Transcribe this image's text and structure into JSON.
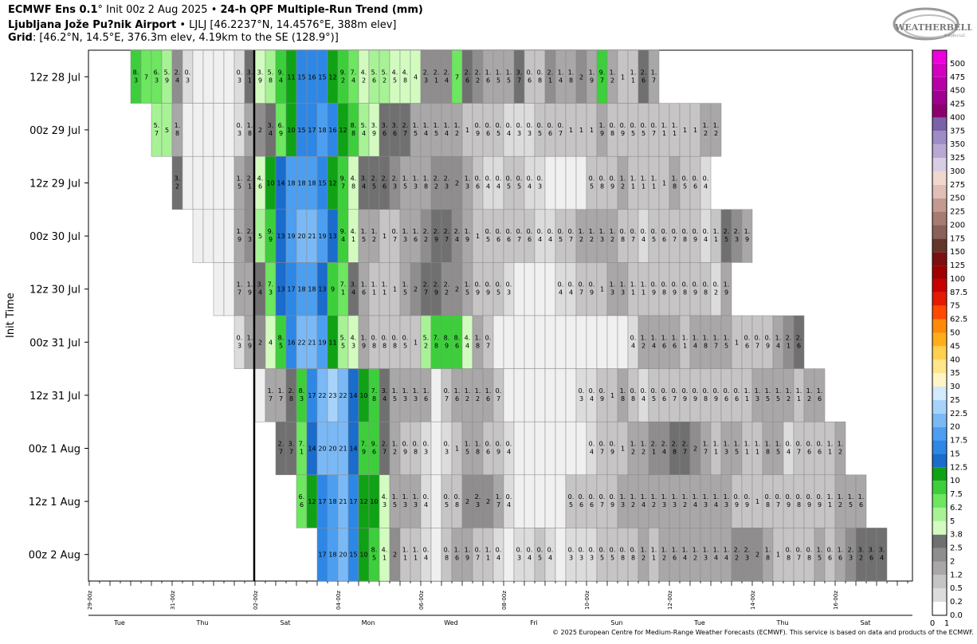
{
  "header": {
    "line1_prefix": "ECMWF Ens 0.1",
    "line1_rest": "° Init 00z 2 Aug 2025 • ",
    "line1_bold": "24-h QPF Multiple-Run Trend (mm)",
    "line2_bold": "Ljubljana Jože Pu?nik Airport",
    "line2_rest": " • LJLJ [46.2237°N, 14.4576°E, 388m elev]",
    "line3_bold": "Grid",
    "line3_rest": ": [46.2°N, 14.5°E, 376.3m elev, 4.19km to the SE (128.9°)]"
  },
  "logo": {
    "text": "WEATHERBELL",
    "sub": "Analytics LLC"
  },
  "credit": "© 2025 European Centre for Medium-Range Weather Forecasts (ECMWF). This service is based on data and products of the ECMWF.",
  "chart_data": {
    "type": "heatmap",
    "ylabel": "Init Time",
    "rows": [
      "12z 28 Jul",
      "00z 29 Jul",
      "12z 29 Jul",
      "00z 30 Jul",
      "12z 30 Jul",
      "00z 31 Jul",
      "12z 31 Jul",
      "00z 1 Aug",
      "12z 1 Aug",
      "00z 2 Aug"
    ],
    "row_start_col": [
      4,
      6,
      8,
      10,
      12,
      14,
      16,
      18,
      20,
      22
    ],
    "x_tick_labels": [
      {
        "col": 0,
        "label": "29-00z"
      },
      {
        "col": 8,
        "label": "31-00z"
      },
      {
        "col": 16,
        "label": "02-00z"
      },
      {
        "col": 24,
        "label": "04-00z"
      },
      {
        "col": 32,
        "label": "06-00z"
      },
      {
        "col": 40,
        "label": "08-00z"
      },
      {
        "col": 48,
        "label": "10-00z"
      },
      {
        "col": 56,
        "label": "12-00z"
      },
      {
        "col": 64,
        "label": "14-00z"
      },
      {
        "col": 72,
        "label": "16-00z"
      }
    ],
    "day_labels": [
      {
        "col": 1,
        "label": "Tue"
      },
      {
        "col": 9,
        "label": "Thu"
      },
      {
        "col": 17,
        "label": "Sat"
      },
      {
        "col": 25,
        "label": "Mon"
      },
      {
        "col": 33,
        "label": "Wed"
      },
      {
        "col": 41,
        "label": "Fri"
      },
      {
        "col": 49,
        "label": "Sun"
      },
      {
        "col": 57,
        "label": "Tue"
      },
      {
        "col": 65,
        "label": "Thu"
      },
      {
        "col": 73,
        "label": "Sat"
      }
    ],
    "analysis_col": 16,
    "values": [
      [
        "8.3",
        "7",
        "6.3",
        "5.9",
        "2.4",
        "0.3",
        "",
        "",
        "",
        "",
        "0.3",
        "3.1",
        "3.9",
        "5.8",
        "9.4",
        "11",
        "15",
        "16",
        "15",
        "12",
        "9.2",
        "7.4",
        "4.2",
        "5.6",
        "5.2",
        "4.5",
        "4.8",
        "4",
        "2.3",
        "2.1",
        "2.4",
        "7",
        "2.6",
        "2.2",
        "1.6",
        "1.5",
        "1.5",
        "3.7",
        "0.6",
        "0.8",
        "2.1",
        "1.4",
        "1.8",
        "2",
        "1.9",
        "9.7",
        "1.2",
        "1",
        "1.1",
        "2.6",
        "1.7"
      ],
      [
        "5.7",
        "5",
        "1.8",
        "",
        "",
        "",
        "",
        "",
        "0.3",
        "1.8",
        "2",
        "3.4",
        "6.9",
        "10",
        "15",
        "17",
        "18",
        "16",
        "12",
        "8.8",
        "5.4",
        "3.9",
        "3.6",
        "3.6",
        "2.7",
        "1.5",
        "1.4",
        "1.5",
        "1.4",
        "1.2",
        "1",
        "0.9",
        "0.6",
        "0.5",
        "0.4",
        "0.3",
        "0.3",
        "0.5",
        "0.6",
        "0.7",
        "1",
        "1",
        "1",
        "1.9",
        "0.8",
        "0.9",
        "0.5",
        "0.5",
        "0.7",
        "1.1",
        "1.1",
        "1",
        "1",
        "1.2",
        "1.2"
      ],
      [
        "3.2",
        "",
        "",
        "",
        "",
        "",
        "1.5",
        "2.1",
        "4.6",
        "10",
        "14",
        "18",
        "18",
        "18",
        "15",
        "12",
        "9.7",
        "4.8",
        "3.4",
        "2.5",
        "2.6",
        "2.3",
        "1.5",
        "1.3",
        "1.8",
        "2.2",
        "2.3",
        "2",
        "1.3",
        "0.6",
        "0.4",
        "0.4",
        "0.5",
        "0.5",
        "0.4",
        "0.3",
        "",
        "",
        "",
        "",
        "0.5",
        "0.8",
        "0.9",
        "1.2",
        "1.1",
        "1.1",
        "1.1",
        "1",
        "1.8",
        "0.5",
        "0.6",
        "0.4"
      ],
      [
        "",
        "",
        "",
        "",
        "1.9",
        "2.3",
        "5",
        "9.9",
        "13",
        "19",
        "20",
        "21",
        "19",
        "13",
        "9.4",
        "4.1",
        "1.5",
        "1.2",
        "1",
        "0.7",
        "1.3",
        "1.6",
        "2.2",
        "2.9",
        "2.7",
        "2.4",
        "1.9",
        "1",
        "0.5",
        "0.6",
        "0.6",
        "0.7",
        "0.6",
        "0.4",
        "0.4",
        "0.5",
        "0.7",
        "1.2",
        "1.2",
        "1.3",
        "1.2",
        "0.8",
        "0.7",
        "0.4",
        "0.5",
        "0.6",
        "0.7",
        "0.8",
        "0.9",
        "0.4",
        "1.1",
        "2.5",
        "2.3",
        "1.9"
      ],
      [
        "",
        "",
        "1.7",
        "1.9",
        "3.4",
        "7.3",
        "13",
        "17",
        "18",
        "18",
        "13",
        "9",
        "7.1",
        "3.4",
        "1.6",
        "1.1",
        "1.1",
        "1",
        "1.5",
        "2",
        "2.7",
        "2.9",
        "2.2",
        "2",
        "1.5",
        "0.9",
        "0.9",
        "0.5",
        "0.3",
        "",
        "",
        "",
        "",
        "0.4",
        "0.4",
        "0.7",
        "0.9",
        "1",
        "1.3",
        "1.3",
        "1.1",
        "1.1",
        "0.9",
        "0.8",
        "0.9",
        "0.8",
        "0.9",
        "0.8",
        "0.2",
        "1.9"
      ],
      [
        "0.3",
        "1.9",
        "2",
        "4",
        "8.5",
        "16",
        "22",
        "21",
        "19",
        "11",
        "5.5",
        "4.3",
        "1.9",
        "0.8",
        "0.8",
        "0.8",
        "0.5",
        "1",
        "5.2",
        "7.8",
        "8.9",
        "8.6",
        "4.4",
        "1.8",
        "0.7",
        "",
        "",
        "",
        "",
        "",
        "",
        "",
        "",
        "",
        "",
        "",
        "",
        "",
        "0.4",
        "1.2",
        "1.4",
        "1.6",
        "1.6",
        "1.1",
        "1.4",
        "1.8",
        "1.7",
        "1.5",
        "1",
        "0.6",
        "0.7",
        "0.9",
        "1.4",
        "2.1",
        "2.6"
      ],
      [
        "",
        "1.7",
        "1.7",
        "2.8",
        "8.3",
        "17",
        "22",
        "23",
        "22",
        "14",
        "10",
        "7.8",
        "3.4",
        "1.5",
        "1.3",
        "1.3",
        "1.6",
        "",
        "0.7",
        "1.6",
        "1.2",
        "1.2",
        "1.6",
        "0.7",
        "",
        "",
        "",
        "",
        "",
        "",
        "",
        "0.3",
        "0.4",
        "0.9",
        "1",
        "1.8",
        "0.8",
        "0.4",
        "0.5",
        "0.6",
        "0.7",
        "0.9",
        "0.9",
        "0.8",
        "0.9",
        "0.6",
        "0.6",
        "1.1",
        "1.3",
        "1.5",
        "1.5",
        "1.2",
        "1.1",
        "1.2",
        "1.6"
      ],
      [
        "2.7",
        "3.7",
        "7.1",
        "14",
        "20",
        "20",
        "21",
        "14",
        "7.9",
        "9.6",
        "2.7",
        "1.2",
        "0.9",
        "0.8",
        "0.3",
        "",
        "0.3",
        "1",
        "1.5",
        "1.8",
        "0.6",
        "0.9",
        "0.4",
        "",
        "",
        "",
        "",
        "",
        "",
        "",
        "0.4",
        "0.7",
        "0.9",
        "1",
        "1.2",
        "1.2",
        "2.1",
        "2.4",
        "2.8",
        "2.7",
        "2",
        "1.7",
        "1.1",
        "1.3",
        "1.5",
        "1.1",
        "1.1",
        "1.8",
        "1.5",
        "0.4",
        "0.7",
        "0.6",
        "0.6",
        "1.1",
        "1.2"
      ],
      [
        "6.6",
        "12",
        "17",
        "18",
        "21",
        "17",
        "12",
        "10",
        "4.3",
        "1.5",
        "1.3",
        "1.3",
        "0.4",
        "",
        "0.5",
        "0.8",
        "2",
        "2.3",
        "2",
        "1.7",
        "0.4",
        "",
        "",
        "",
        "",
        "",
        "0.5",
        "0.6",
        "0.6",
        "0.7",
        "0.9",
        "1.3",
        "1.2",
        "1.4",
        "1.2",
        "1.3",
        "1.3",
        "1.2",
        "1.4",
        "1.3",
        "1.4",
        "1.3",
        "0.9",
        "0.9",
        "1",
        "0.8",
        "0.7",
        "0.9",
        "0.8",
        "0.9",
        "0.9",
        "1.1",
        "1.2",
        "1.5",
        "1.6"
      ],
      [
        "17",
        "18",
        "20",
        "15",
        "10",
        "8.5",
        "4.1",
        "2",
        "1.1",
        "1.1",
        "0.4",
        "",
        "0.8",
        "1.6",
        "1.9",
        "0.7",
        "1.1",
        "0.4",
        "",
        "0.3",
        "0.4",
        "0.5",
        "0.4",
        "",
        "0.3",
        "0.3",
        "0.3",
        "0.5",
        "0.5",
        "0.8",
        "0.8",
        "1.2",
        "1.1",
        "1.2",
        "1.6",
        "1.4",
        "1.2",
        "1.3",
        "1.4",
        "1.4",
        "2.2",
        "2.3",
        "2",
        "1.8",
        "1",
        "0.8",
        "0.7",
        "0.8",
        "1.5",
        "0.6",
        "1.6",
        "2.3",
        "3.2",
        "3.6",
        "3.4"
      ]
    ],
    "colorbar_levels": [
      "0.0",
      "0.2",
      "0.5",
      "1.2",
      "2",
      "2.5",
      "3.8",
      "5",
      "6.2",
      "7.5",
      "10",
      "12.5",
      "15",
      "17.5",
      "20",
      "22.5",
      "25",
      "30",
      "35",
      "40",
      "45",
      "50",
      "62.5",
      "75",
      "87.5",
      "100",
      "125",
      "150",
      "175",
      "200",
      "225",
      "250",
      "275",
      "300",
      "325",
      "350",
      "375",
      "400",
      "425",
      "450",
      "475",
      "500"
    ],
    "colorbar_colors": [
      "#ffffff",
      "#dcdcdc",
      "#c6c4c4",
      "#a9a7a7",
      "#8f8d8d",
      "#707070",
      "#d3fbc0",
      "#a8f296",
      "#6de660",
      "#3dcf3b",
      "#0fa215",
      "#1a6ccd",
      "#2d87e6",
      "#4c9ff0",
      "#7ab9f5",
      "#a7d3fb",
      "#d1ebfd",
      "#fff5c6",
      "#ffe68c",
      "#ffd04d",
      "#ffae1a",
      "#ff8a0a",
      "#ff4a00",
      "#e51a00",
      "#c80000",
      "#a00000",
      "#7a1010",
      "#64362b",
      "#8a6158",
      "#a67b70",
      "#c29a90",
      "#e0c0b6",
      "#f0d8ce",
      "#d8cde3",
      "#b8a8d4",
      "#9d8cc6",
      "#7b61a8",
      "#8b0070",
      "#a00090",
      "#b800a8",
      "#d400c0",
      "#ee00dc"
    ]
  }
}
